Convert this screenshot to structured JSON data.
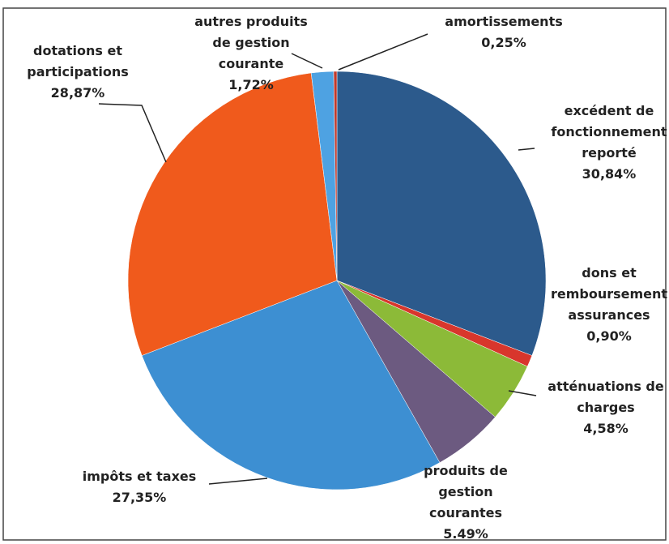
{
  "chart_data": {
    "type": "pie",
    "categories": [
      "excédent de\nfonctionnement\nreporté",
      "dons et\nremboursement\nassurances",
      "atténuations de\ncharges",
      "produits de\ngestion\ncourantes",
      "impôts et taxes",
      "dotations et\nparticipations",
      "autres produits\nde gestion\ncourante",
      "amortissements"
    ],
    "values": [
      30.84,
      0.9,
      4.58,
      5.49,
      27.35,
      28.87,
      1.72,
      0.25
    ],
    "value_labels": [
      "30,84%",
      "0,90%",
      "4,58%",
      "5.49%",
      "27,35%",
      "28,87%",
      "1,72%",
      "0,25%"
    ],
    "colors": [
      "#2c5a8c",
      "#d8362c",
      "#8cba38",
      "#6c5a80",
      "#3d8fd2",
      "#f05a1c",
      "#4ea2e2",
      "#c0392b"
    ]
  }
}
